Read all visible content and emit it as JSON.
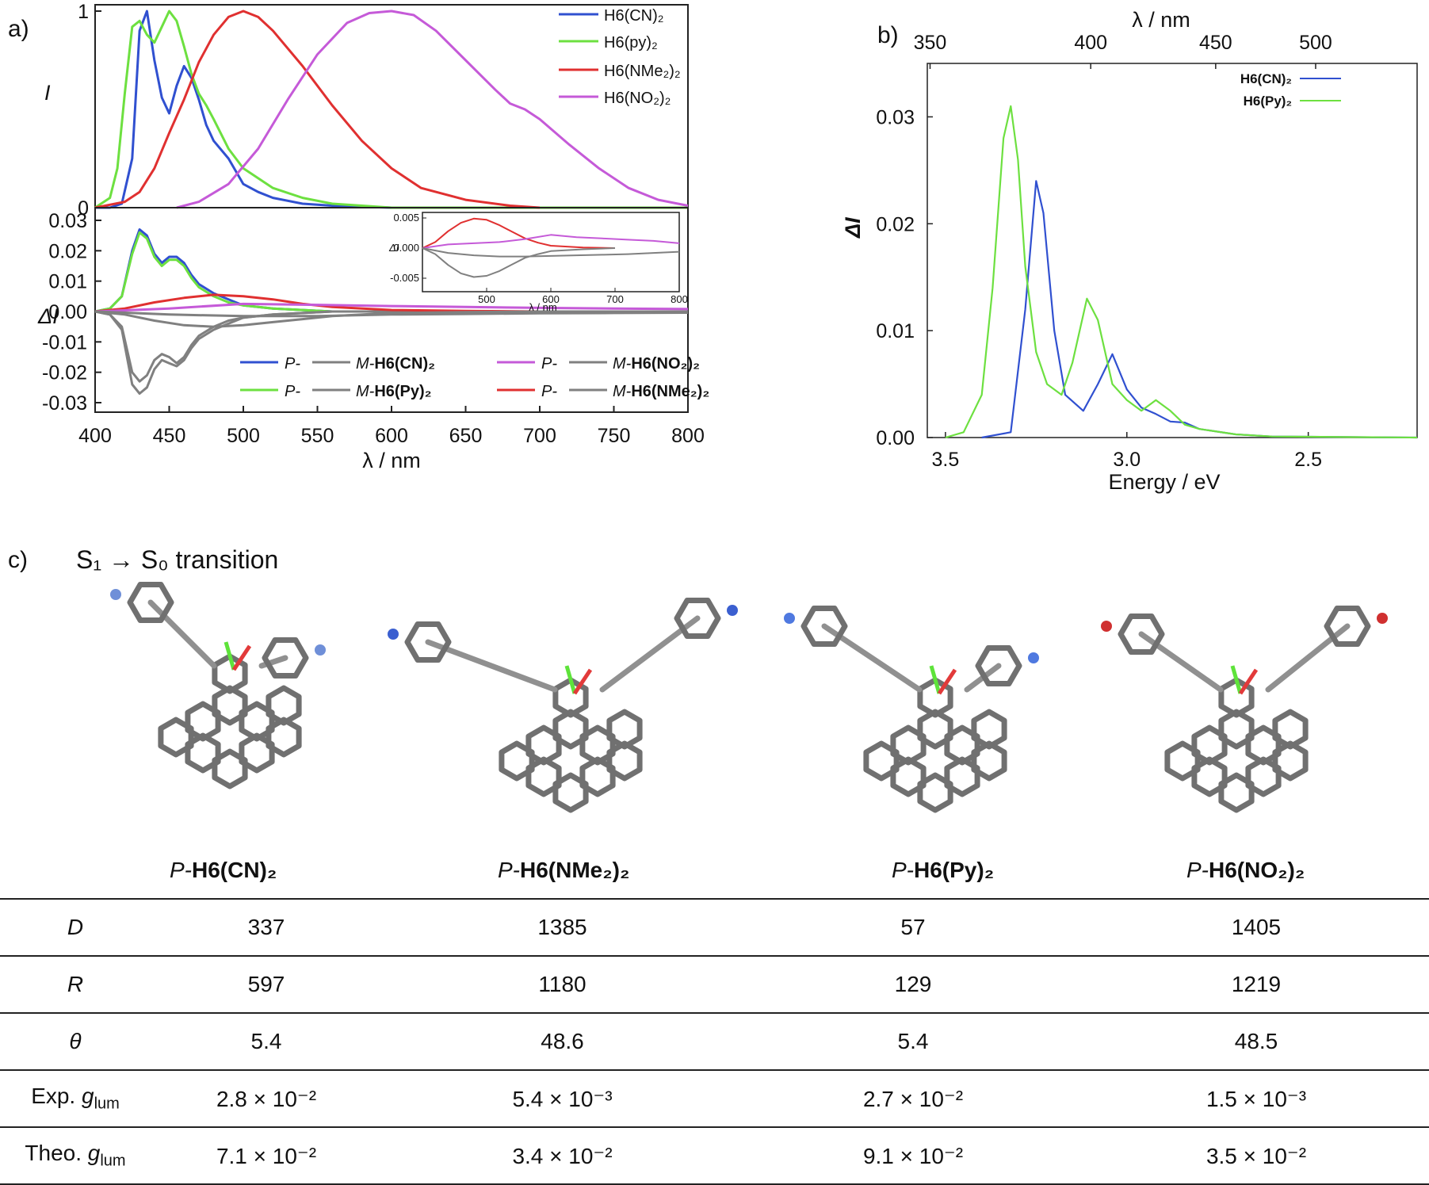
{
  "panel_labels": {
    "a": "a)",
    "b": "b)",
    "c": "c)"
  },
  "chart_data": [
    {
      "id": "a_top",
      "type": "line",
      "ylabel": "I",
      "yticks": [
        "0",
        "1"
      ],
      "xlim": [
        400,
        800
      ],
      "ylim": [
        0,
        1
      ],
      "series": [
        {
          "name": "H6(CN)2",
          "color": "#3050d0",
          "x": [
            400,
            410,
            418,
            425,
            430,
            435,
            440,
            445,
            450,
            455,
            460,
            465,
            470,
            475,
            480,
            490,
            500,
            510,
            520,
            540,
            560,
            600,
            650,
            700,
            800
          ],
          "y": [
            0,
            0,
            0.02,
            0.25,
            0.9,
            1.0,
            0.75,
            0.56,
            0.48,
            0.62,
            0.72,
            0.66,
            0.55,
            0.42,
            0.34,
            0.25,
            0.12,
            0.08,
            0.05,
            0.02,
            0.01,
            0,
            0,
            0,
            0
          ]
        },
        {
          "name": "H6(py)2",
          "color": "#6de040",
          "x": [
            400,
            410,
            415,
            420,
            425,
            430,
            435,
            440,
            445,
            450,
            455,
            460,
            465,
            470,
            475,
            480,
            490,
            500,
            520,
            540,
            560,
            600,
            650,
            700,
            800
          ],
          "y": [
            0,
            0.05,
            0.2,
            0.58,
            0.92,
            0.95,
            0.88,
            0.84,
            0.92,
            1.0,
            0.95,
            0.82,
            0.68,
            0.58,
            0.52,
            0.45,
            0.3,
            0.2,
            0.1,
            0.05,
            0.02,
            0,
            0,
            0,
            0
          ]
        },
        {
          "name": "H6(NMe2)2",
          "color": "#e03030",
          "x": [
            400,
            420,
            430,
            440,
            450,
            460,
            470,
            480,
            490,
            500,
            510,
            520,
            540,
            560,
            580,
            600,
            620,
            650,
            680,
            700
          ],
          "y": [
            0,
            0.03,
            0.08,
            0.2,
            0.38,
            0.55,
            0.74,
            0.88,
            0.97,
            1.0,
            0.97,
            0.9,
            0.72,
            0.52,
            0.34,
            0.2,
            0.1,
            0.04,
            0.01,
            0
          ]
        },
        {
          "name": "H6(NO2)2",
          "color": "#c55ad8",
          "x": [
            455,
            470,
            490,
            510,
            530,
            550,
            570,
            585,
            600,
            615,
            630,
            650,
            670,
            680,
            690,
            700,
            720,
            740,
            760,
            780,
            800
          ],
          "y": [
            0,
            0.03,
            0.12,
            0.3,
            0.55,
            0.78,
            0.94,
            0.99,
            1.0,
            0.98,
            0.9,
            0.75,
            0.6,
            0.53,
            0.5,
            0.45,
            0.32,
            0.2,
            0.1,
            0.04,
            0.01
          ]
        }
      ]
    },
    {
      "id": "a_bottom",
      "type": "line",
      "ylabel": "ΔI",
      "xlabel": "λ / nm",
      "xlim": [
        400,
        800
      ],
      "ylim": [
        -0.033,
        0.033
      ],
      "xticks": [
        400,
        450,
        500,
        550,
        600,
        650,
        700,
        750,
        800
      ],
      "yticks": [
        "0.03",
        "0.02",
        "0.01",
        "0.00",
        "-0.01",
        "-0.02",
        "-0.03"
      ],
      "legend": [
        {
          "p": "P-",
          "m": "M-",
          "compound": "H6(CN)2"
        },
        {
          "p": "P-",
          "m": "M-",
          "compound": "H6(NO2)2"
        },
        {
          "p": "P-",
          "m": "M-",
          "compound": "H6(Py)2"
        },
        {
          "p": "P-",
          "m": "M-",
          "compound": "H6(NMe2)2"
        }
      ],
      "series": [
        {
          "name": "P-H6(CN)2",
          "color": "#3050d0",
          "x": [
            400,
            410,
            418,
            425,
            430,
            435,
            440,
            445,
            450,
            455,
            460,
            465,
            470,
            480,
            490,
            500,
            520,
            540,
            560,
            600,
            800
          ],
          "y": [
            0,
            0.001,
            0.005,
            0.02,
            0.027,
            0.025,
            0.019,
            0.016,
            0.018,
            0.018,
            0.016,
            0.012,
            0.009,
            0.006,
            0.004,
            0.002,
            0.001,
            0.0005,
            0,
            0,
            0
          ]
        },
        {
          "name": "P-H6(Py)2",
          "color": "#6de040",
          "x": [
            400,
            410,
            418,
            425,
            430,
            435,
            440,
            445,
            450,
            455,
            460,
            465,
            470,
            480,
            490,
            500,
            520,
            540,
            560,
            600,
            800
          ],
          "y": [
            0,
            0.001,
            0.005,
            0.019,
            0.026,
            0.024,
            0.018,
            0.015,
            0.017,
            0.017,
            0.015,
            0.011,
            0.008,
            0.005,
            0.003,
            0.002,
            0.001,
            0.0005,
            0,
            0,
            0
          ]
        },
        {
          "name": "M-H6(CN)2",
          "color": "#808080",
          "x": [
            400,
            410,
            418,
            425,
            430,
            435,
            440,
            445,
            450,
            455,
            460,
            465,
            470,
            480,
            490,
            500,
            520,
            540,
            560,
            600,
            800
          ],
          "y": [
            0,
            -0.001,
            -0.005,
            -0.02,
            -0.023,
            -0.021,
            -0.016,
            -0.014,
            -0.015,
            -0.017,
            -0.015,
            -0.011,
            -0.008,
            -0.005,
            -0.003,
            -0.002,
            -0.001,
            -0.0005,
            0,
            0,
            0
          ]
        },
        {
          "name": "M-H6(Py)2",
          "color": "#808080",
          "x": [
            400,
            410,
            418,
            425,
            430,
            435,
            440,
            445,
            450,
            455,
            460,
            465,
            470,
            480,
            490,
            500,
            520,
            540,
            560,
            600,
            800
          ],
          "y": [
            0,
            -0.001,
            -0.006,
            -0.024,
            -0.027,
            -0.025,
            -0.019,
            -0.016,
            -0.017,
            -0.018,
            -0.016,
            -0.012,
            -0.009,
            -0.006,
            -0.004,
            -0.002,
            -0.001,
            -0.0005,
            0,
            0,
            0
          ]
        },
        {
          "name": "P-H6(NMe2)2",
          "color": "#e03030",
          "x": [
            400,
            420,
            440,
            460,
            480,
            500,
            520,
            540,
            560,
            600,
            650,
            700
          ],
          "y": [
            0,
            0.001,
            0.003,
            0.0045,
            0.0055,
            0.005,
            0.004,
            0.0025,
            0.0015,
            0.0005,
            0.0002,
            0
          ]
        },
        {
          "name": "P-H6(NO2)2",
          "color": "#c55ad8",
          "x": [
            400,
            450,
            500,
            550,
            600,
            650,
            700,
            750,
            800
          ],
          "y": [
            0,
            0.001,
            0.0025,
            0.0022,
            0.0018,
            0.0015,
            0.0012,
            0.001,
            0.0008
          ]
        },
        {
          "name": "M-H6(NMe2)2",
          "color": "#808080",
          "x": [
            400,
            420,
            440,
            460,
            480,
            500,
            520,
            540,
            560,
            600,
            650,
            700
          ],
          "y": [
            0,
            -0.001,
            -0.003,
            -0.0045,
            -0.005,
            -0.0045,
            -0.0035,
            -0.0025,
            -0.0015,
            -0.0005,
            -0.0002,
            0
          ]
        },
        {
          "name": "M-H6(NO2)2",
          "color": "#808080",
          "x": [
            400,
            450,
            500,
            550,
            600,
            650,
            700,
            750,
            800
          ],
          "y": [
            0,
            -0.001,
            -0.0015,
            -0.0015,
            -0.001,
            -0.0008,
            -0.0006,
            -0.0005,
            -0.0004
          ]
        }
      ]
    },
    {
      "id": "a_inset",
      "type": "line",
      "ylabel": "ΔI",
      "xlabel": "λ / nm",
      "xlim": [
        400,
        800
      ],
      "ylim": [
        -0.0065,
        0.0075
      ],
      "xticks": [
        500,
        600,
        700,
        800
      ],
      "yticks": [
        "0.005",
        "0.000",
        "-0.005"
      ],
      "series": [
        {
          "name": "P-H6(NMe2)2",
          "color": "#e03030",
          "x": [
            400,
            420,
            440,
            460,
            480,
            500,
            520,
            540,
            560,
            580,
            600,
            650,
            700
          ],
          "y": [
            0,
            0.001,
            0.0028,
            0.0042,
            0.0049,
            0.0047,
            0.0038,
            0.0027,
            0.0016,
            0.0009,
            0.0004,
            0.0001,
            0
          ]
        },
        {
          "name": "P-H6(NO2)2",
          "color": "#c55ad8",
          "x": [
            400,
            440,
            480,
            520,
            560,
            600,
            640,
            680,
            720,
            760,
            800
          ],
          "y": [
            0,
            0.0006,
            0.0008,
            0.001,
            0.0015,
            0.0022,
            0.0018,
            0.0016,
            0.0014,
            0.0012,
            0.0008
          ]
        },
        {
          "name": "M-H6(NMe2)2",
          "color": "#808080",
          "x": [
            400,
            420,
            440,
            460,
            480,
            500,
            520,
            540,
            560,
            580,
            600,
            650,
            700
          ],
          "y": [
            0,
            -0.001,
            -0.0028,
            -0.0042,
            -0.0048,
            -0.0046,
            -0.0038,
            -0.0027,
            -0.0016,
            -0.001,
            -0.0005,
            -0.0002,
            0
          ]
        },
        {
          "name": "M-H6(NO2)2",
          "color": "#808080",
          "x": [
            400,
            440,
            480,
            520,
            560,
            600,
            640,
            680,
            720,
            760,
            800
          ],
          "y": [
            0,
            -0.0008,
            -0.0012,
            -0.0014,
            -0.0014,
            -0.0013,
            -0.0012,
            -0.0011,
            -0.001,
            -0.0008,
            -0.0006
          ]
        }
      ]
    },
    {
      "id": "b",
      "type": "line",
      "ylabel": "ΔI",
      "xlabel": "Energy / eV",
      "top_xlabel": "λ / nm",
      "xlim": [
        3.55,
        2.2
      ],
      "ylim": [
        0,
        0.035
      ],
      "xticks": [
        3.5,
        3.0,
        2.5
      ],
      "xtick_labels": [
        "3.5",
        "3.0",
        "2.5"
      ],
      "top_xticks": [
        350,
        400,
        450,
        500
      ],
      "yticks": [
        "0.00",
        "0.01",
        "0.02",
        "0.03"
      ],
      "legend": [
        "H6(CN)2",
        "H6(Py)2"
      ],
      "series": [
        {
          "name": "H6(CN)2",
          "color": "#3050d0",
          "x": [
            3.4,
            3.32,
            3.28,
            3.25,
            3.23,
            3.2,
            3.17,
            3.12,
            3.08,
            3.04,
            3.0,
            2.96,
            2.92,
            2.88,
            2.84,
            2.8,
            2.7,
            2.6,
            2.2
          ],
          "y": [
            0,
            0.0005,
            0.012,
            0.024,
            0.021,
            0.01,
            0.004,
            0.0025,
            0.005,
            0.0078,
            0.0045,
            0.0028,
            0.0022,
            0.0015,
            0.0014,
            0.0008,
            0.0003,
            0.0001,
            0
          ]
        },
        {
          "name": "H6(Py)2",
          "color": "#6de040",
          "x": [
            3.5,
            3.45,
            3.4,
            3.37,
            3.34,
            3.32,
            3.3,
            3.28,
            3.25,
            3.22,
            3.18,
            3.15,
            3.11,
            3.08,
            3.04,
            3.0,
            2.96,
            2.92,
            2.88,
            2.84,
            2.8,
            2.7,
            2.6,
            2.2
          ],
          "y": [
            0,
            0.0005,
            0.004,
            0.014,
            0.028,
            0.031,
            0.026,
            0.016,
            0.008,
            0.005,
            0.004,
            0.007,
            0.013,
            0.011,
            0.005,
            0.0035,
            0.0025,
            0.0035,
            0.0025,
            0.0012,
            0.0008,
            0.0003,
            0.0001,
            0
          ]
        }
      ]
    }
  ],
  "panel_c": {
    "title": "S₁ → S₀ transition",
    "molecules": [
      {
        "prefix": "P-",
        "name": "H6(CN)₂"
      },
      {
        "prefix": "P-",
        "name": "H6(NMe₂)₂"
      },
      {
        "prefix": "P-",
        "name": "H6(Py)₂"
      },
      {
        "prefix": "P-",
        "name": "H6(NO₂)₂"
      }
    ]
  },
  "table": {
    "rows": [
      {
        "label": "D",
        "values": [
          "337",
          "1385",
          "57",
          "1405"
        ]
      },
      {
        "label": "R",
        "values": [
          "597",
          "1180",
          "129",
          "1219"
        ]
      },
      {
        "label": "θ",
        "values": [
          "5.4",
          "48.6",
          "5.4",
          "48.5"
        ]
      },
      {
        "label": "Exp. g_lum",
        "values": [
          "2.8 × 10⁻²",
          "5.4 × 10⁻³",
          "2.7 × 10⁻²",
          "1.5 × 10⁻³"
        ]
      },
      {
        "label": "Theo. g_lum",
        "values": [
          "7.1 × 10⁻²",
          "3.4 × 10⁻²",
          "9.1 × 10⁻²",
          "3.5 × 10⁻²"
        ]
      }
    ]
  }
}
